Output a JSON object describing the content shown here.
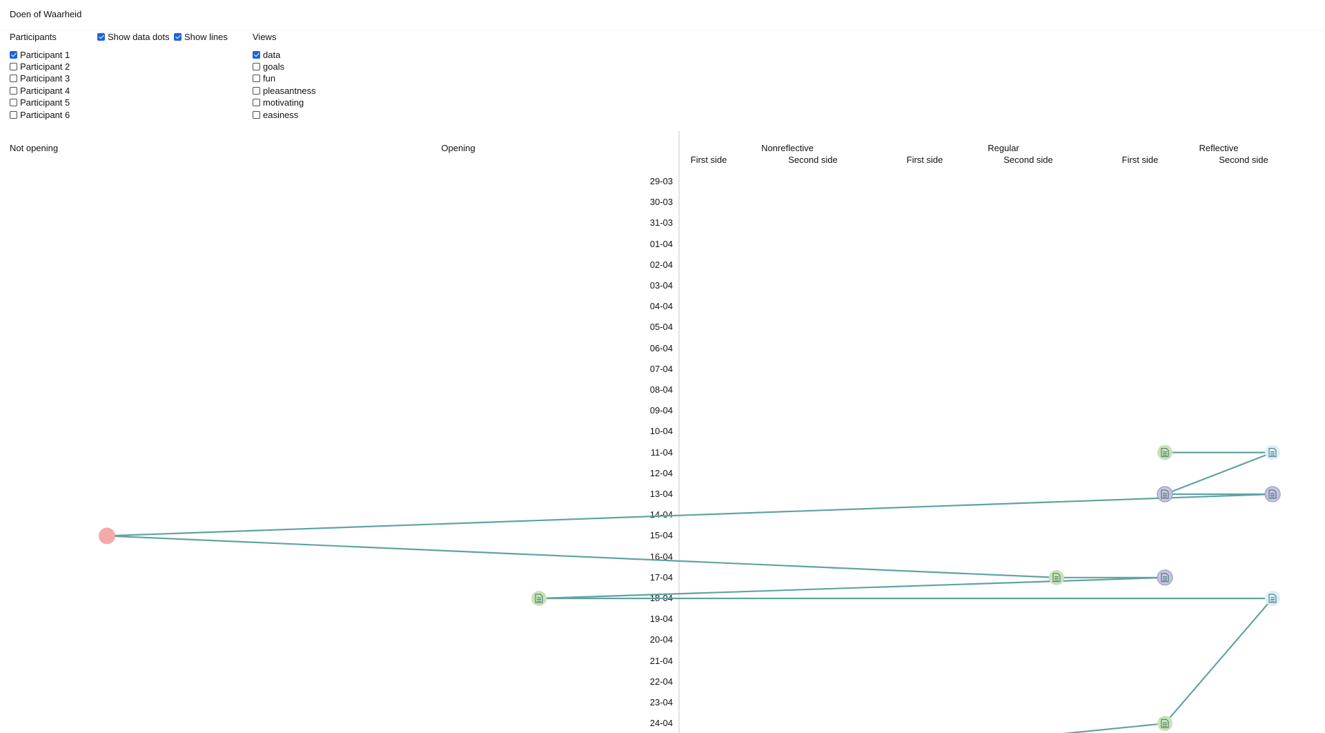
{
  "app": {
    "title": "Doen of Waarheid"
  },
  "controls": {
    "participants_label": "Participants",
    "participants": [
      {
        "label": "Participant 1",
        "checked": true
      },
      {
        "label": "Participant 2",
        "checked": false
      },
      {
        "label": "Participant 3",
        "checked": false
      },
      {
        "label": "Participant 4",
        "checked": false
      },
      {
        "label": "Participant 5",
        "checked": false
      },
      {
        "label": "Participant 6",
        "checked": false
      }
    ],
    "show_data_dots": {
      "label": "Show data dots",
      "checked": true
    },
    "show_lines": {
      "label": "Show lines",
      "checked": true
    },
    "views_label": "Views",
    "views": [
      {
        "label": "data",
        "checked": true
      },
      {
        "label": "goals",
        "checked": false
      },
      {
        "label": "fun",
        "checked": false
      },
      {
        "label": "pleasantness",
        "checked": false
      },
      {
        "label": "motivating",
        "checked": false
      },
      {
        "label": "easiness",
        "checked": false
      }
    ]
  },
  "chart_data": {
    "type": "scatter",
    "labels": {
      "not_opening": "Not opening",
      "opening": "Opening",
      "nonreflective": "Nonreflective",
      "regular": "Regular",
      "reflective": "Reflective",
      "first_side": "First side",
      "second_side": "Second side"
    },
    "x_categories": [
      "Not opening",
      "Opening",
      "Nonreflective First side",
      "Nonreflective Second side",
      "Regular First side",
      "Regular Second side",
      "Reflective First side",
      "Reflective Second side"
    ],
    "dates": [
      "29-03",
      "30-03",
      "31-03",
      "01-04",
      "02-04",
      "03-04",
      "04-04",
      "05-04",
      "06-04",
      "07-04",
      "08-04",
      "09-04",
      "10-04",
      "11-04",
      "12-04",
      "13-04",
      "14-04",
      "15-04",
      "16-04",
      "17-04",
      "18-04",
      "19-04",
      "20-04",
      "21-04",
      "22-04",
      "23-04",
      "24-04"
    ],
    "series": [
      {
        "line_color": "#5fa3a0",
        "points": [
          {
            "date": "11-04",
            "category": "Reflective First side",
            "kind": "green"
          },
          {
            "date": "11-04",
            "category": "Reflective Second side",
            "kind": "lightblue"
          },
          {
            "date": "13-04",
            "category": "Reflective First side",
            "kind": "purple"
          },
          {
            "date": "13-04",
            "category": "Reflective Second side",
            "kind": "purple"
          },
          {
            "date": "15-04",
            "category": "Not opening",
            "kind": "red"
          },
          {
            "date": "17-04",
            "category": "Regular Second side",
            "kind": "green"
          },
          {
            "date": "17-04",
            "category": "Reflective First side",
            "kind": "purple"
          },
          {
            "date": "18-04",
            "category": "Opening",
            "kind": "green"
          },
          {
            "date": "18-04",
            "category": "Reflective Second side",
            "kind": "lightblue"
          },
          {
            "date": "24-04",
            "category": "Reflective First side",
            "kind": "green"
          }
        ]
      }
    ],
    "dot_colors": {
      "green": "#c9e3b6",
      "lightblue": "#dceefa",
      "purple": "#c7c5e0",
      "red": "#f4a9a9"
    }
  }
}
